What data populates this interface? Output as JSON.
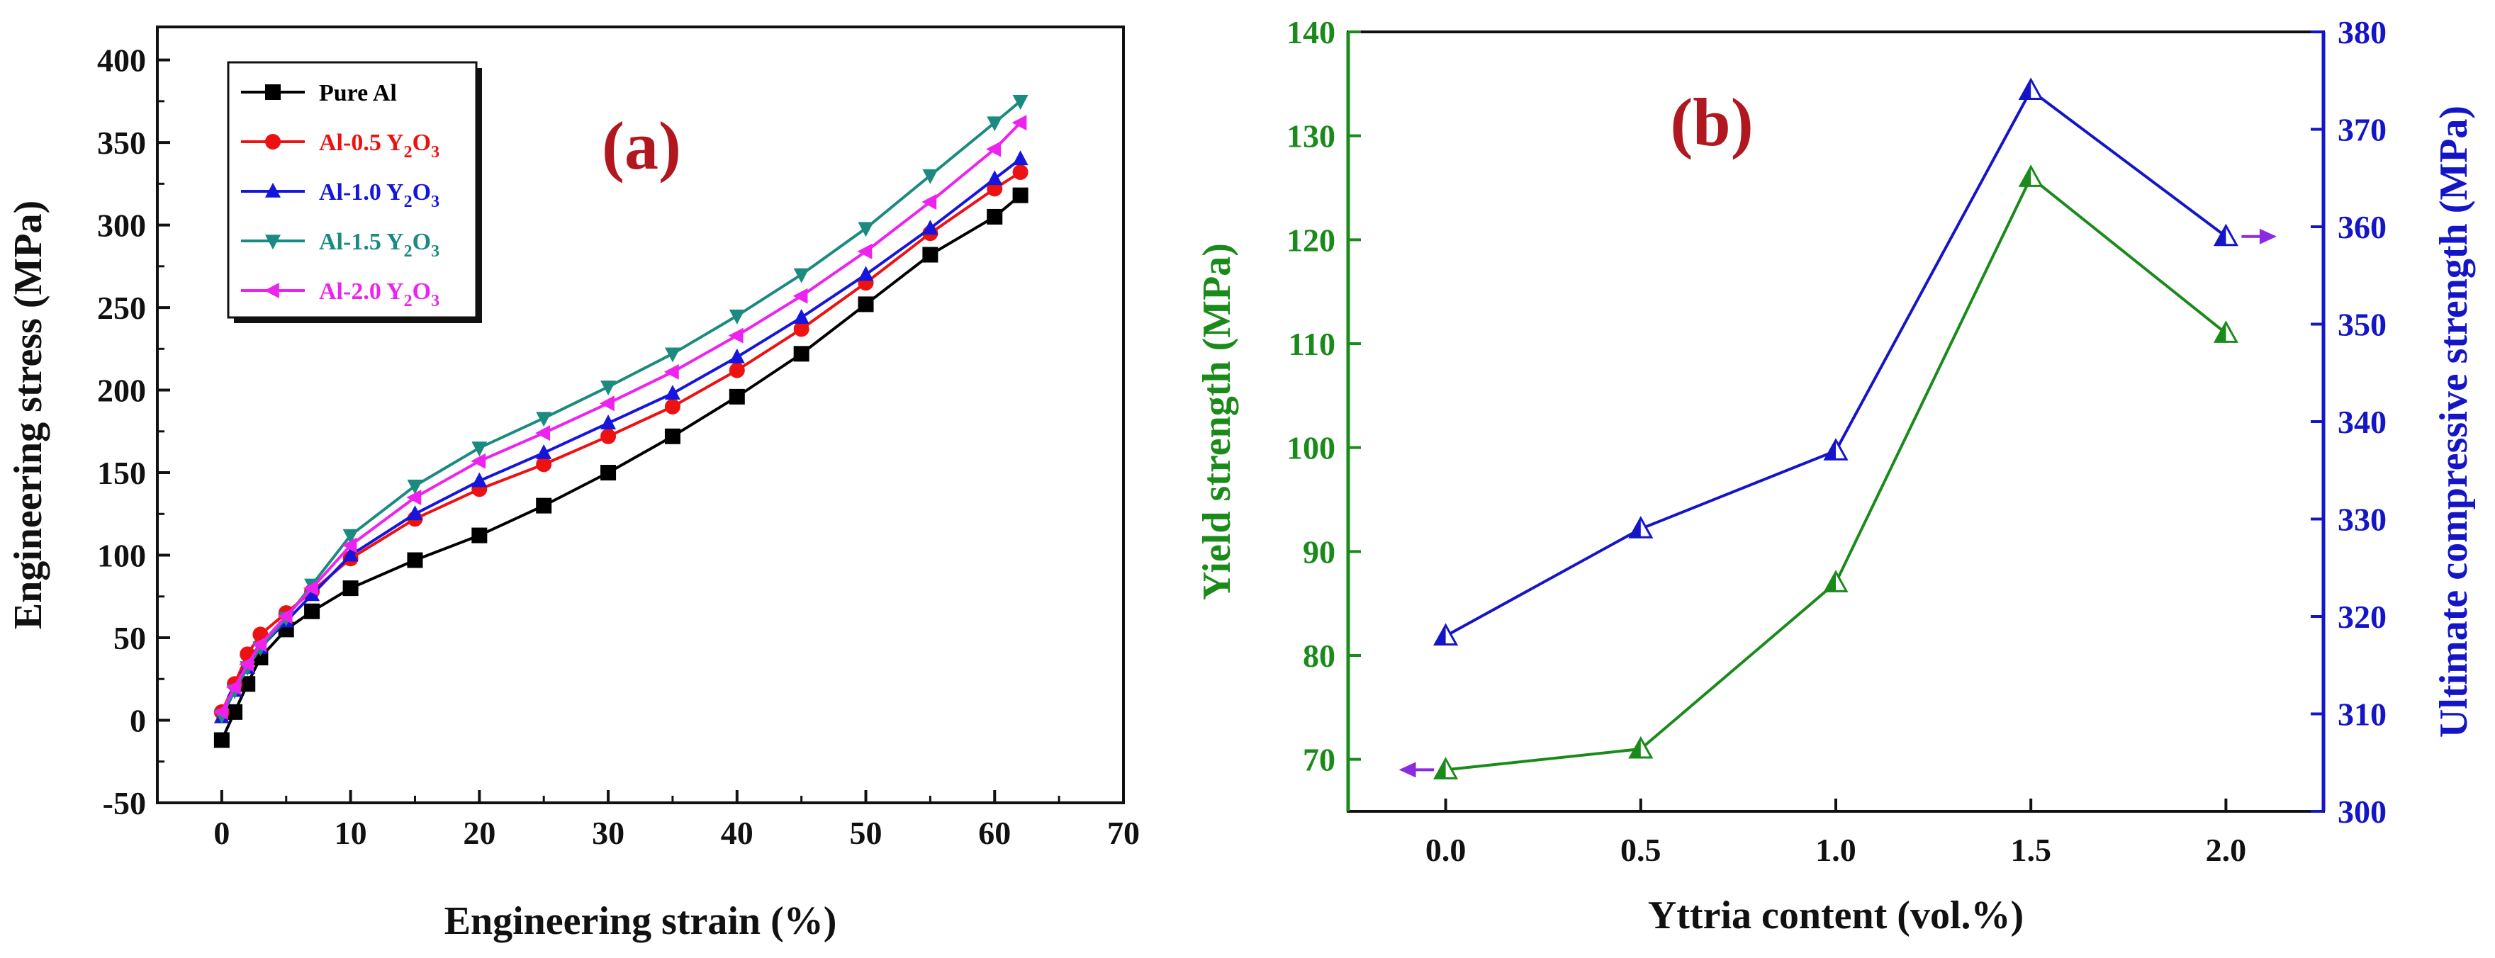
{
  "chart_data": [
    {
      "type": "line",
      "panel_label": "(a)",
      "xlabel": "Engineering strain (%)",
      "ylabel": "Engineering stress (MPa)",
      "xlim": [
        -5,
        70
      ],
      "ylim": [
        -50,
        420
      ],
      "xticks": [
        0,
        10,
        20,
        30,
        40,
        50,
        60,
        70
      ],
      "yticks": [
        -50,
        0,
        50,
        100,
        150,
        200,
        250,
        300,
        350,
        400
      ],
      "grid": false,
      "legend_position": "top-left",
      "series": [
        {
          "name": "Pure Al",
          "label_main": "Pure Al",
          "label_sub": "",
          "color": "#000000",
          "marker": "square",
          "x": [
            0,
            1,
            2,
            3,
            5,
            7,
            10,
            15,
            20,
            25,
            30,
            35,
            40,
            45,
            50,
            55,
            60,
            62
          ],
          "y": [
            -12,
            5,
            22,
            38,
            55,
            66,
            80,
            97,
            112,
            130,
            150,
            172,
            196,
            222,
            252,
            282,
            305,
            318
          ]
        },
        {
          "name": "Al-0.5 Y2O3",
          "label_main": "Al-0.5 Y",
          "label_sub": "2",
          "label_tail": "O",
          "label_sub2": "3",
          "color": "#ee1111",
          "marker": "circle",
          "x": [
            0,
            1,
            2,
            3,
            5,
            7,
            10,
            15,
            20,
            25,
            30,
            35,
            40,
            45,
            50,
            55,
            60,
            62
          ],
          "y": [
            5,
            22,
            40,
            52,
            65,
            78,
            98,
            122,
            140,
            155,
            172,
            190,
            212,
            237,
            265,
            295,
            322,
            332
          ]
        },
        {
          "name": "Al-1.0 Y2O3",
          "label_main": "Al-1.0 Y",
          "label_sub": "2",
          "label_tail": "O",
          "label_sub2": "3",
          "color": "#1515dd",
          "marker": "triangle-up",
          "x": [
            0,
            1,
            2,
            3,
            5,
            7,
            10,
            15,
            20,
            25,
            30,
            35,
            40,
            45,
            50,
            55,
            60,
            62
          ],
          "y": [
            2,
            18,
            32,
            44,
            60,
            76,
            100,
            125,
            145,
            162,
            180,
            198,
            220,
            244,
            270,
            298,
            328,
            340
          ]
        },
        {
          "name": "Al-1.5 Y2O3",
          "label_main": "Al-1.5 Y",
          "label_sub": "2",
          "label_tail": "O",
          "label_sub2": "3",
          "color": "#1b8a80",
          "marker": "triangle-down",
          "x": [
            0,
            1,
            2,
            3,
            5,
            7,
            10,
            15,
            20,
            25,
            30,
            35,
            40,
            45,
            50,
            55,
            60,
            62
          ],
          "y": [
            3,
            18,
            32,
            44,
            62,
            82,
            112,
            142,
            165,
            183,
            202,
            222,
            245,
            270,
            298,
            330,
            362,
            375
          ]
        },
        {
          "name": "Al-2.0 Y2O3",
          "label_main": "Al-2.0 Y",
          "label_sub": "2",
          "label_tail": "O",
          "label_sub2": "3",
          "color": "#ee22ee",
          "marker": "triangle-left",
          "x": [
            0,
            1,
            2,
            3,
            5,
            7,
            10,
            15,
            20,
            25,
            30,
            35,
            40,
            45,
            50,
            55,
            60,
            62
          ],
          "y": [
            5,
            20,
            34,
            46,
            63,
            80,
            106,
            135,
            157,
            174,
            192,
            211,
            233,
            257,
            284,
            314,
            346,
            362
          ]
        }
      ]
    },
    {
      "type": "line",
      "panel_label": "(b)",
      "xlabel": "Yttria content (vol.%)",
      "ylabel_left": "Yield strength (MPa)",
      "ylabel_right": "Ultimate compressive strength (MPa)",
      "xlim": [
        -0.25,
        2.25
      ],
      "ylim_left": [
        65,
        140
      ],
      "ylim_right": [
        300,
        380
      ],
      "xticks": [
        0.0,
        0.5,
        1.0,
        1.5,
        2.0
      ],
      "xtick_labels": [
        "0.0",
        "0.5",
        "1.0",
        "1.5",
        "2.0"
      ],
      "yticks_left": [
        70,
        80,
        90,
        100,
        110,
        120,
        130,
        140
      ],
      "yticks_right": [
        300,
        310,
        320,
        330,
        340,
        350,
        360,
        370,
        380
      ],
      "left_axis_color": "#1a8a1a",
      "right_axis_color": "#1515c8",
      "arrow_color": "#8a2be2",
      "grid": false,
      "series": [
        {
          "name": "Yield strength",
          "axis": "left",
          "color": "#1a8a1a",
          "x": [
            0.0,
            0.5,
            1.0,
            1.5,
            2.0
          ],
          "y": [
            69,
            71,
            87,
            126,
            111
          ]
        },
        {
          "name": "Ultimate compressive strength",
          "axis": "right",
          "color": "#1515c8",
          "x": [
            0.0,
            0.5,
            1.0,
            1.5,
            2.0
          ],
          "y": [
            318,
            329,
            337,
            374,
            359
          ]
        }
      ]
    }
  ]
}
